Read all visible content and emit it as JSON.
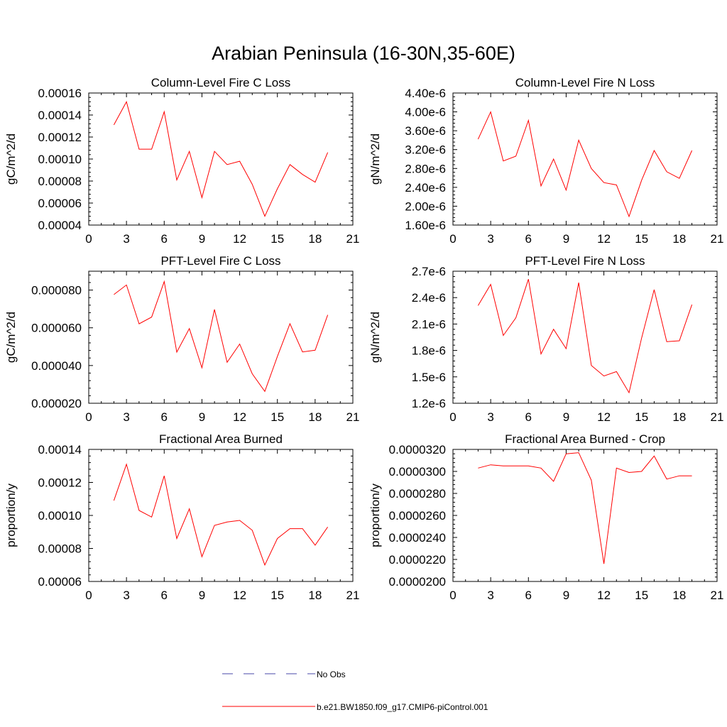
{
  "title": "Arabian Peninsula (16-30N,35-60E)",
  "legend": {
    "entries": [
      {
        "label": "No Obs",
        "style": "dashed",
        "color": "#4a4aa8"
      },
      {
        "label": "b.e21.BW1850.f09_g17.CMIP6-piControl.001",
        "style": "solid",
        "color": "#ff0000"
      }
    ]
  },
  "chart_data": [
    {
      "type": "line",
      "title": "Column-Level Fire C Loss",
      "ylabel": "gC/m^2/d",
      "xlabel": "",
      "xlim": [
        0,
        21
      ],
      "xticks": [
        "0",
        "3",
        "6",
        "9",
        "12",
        "15",
        "18",
        "21"
      ],
      "ylim": [
        4e-05,
        0.00016
      ],
      "yticks": [
        "0.00004",
        "0.00006",
        "0.00008",
        "0.00010",
        "0.00012",
        "0.00014",
        "0.00016"
      ],
      "series": [
        {
          "name": "b.e21.BW1850.f09_g17.CMIP6-piControl.001",
          "color": "#ff0000",
          "x": [
            2,
            3,
            4,
            5,
            6,
            7,
            8,
            9,
            10,
            11,
            12,
            13,
            14,
            15,
            16,
            17,
            18,
            19
          ],
          "y": [
            0.000131,
            0.000152,
            0.000109,
            0.000109,
            0.000143,
            8.1e-05,
            0.000107,
            6.5e-05,
            0.000107,
            9.5e-05,
            9.8e-05,
            7.7e-05,
            4.8e-05,
            7.3e-05,
            9.5e-05,
            8.6e-05,
            7.9e-05,
            0.000106
          ]
        }
      ]
    },
    {
      "type": "line",
      "title": "Column-Level Fire N Loss",
      "ylabel": "gN/m^2/d",
      "xlabel": "",
      "xlim": [
        0,
        21
      ],
      "xticks": [
        "0",
        "3",
        "6",
        "9",
        "12",
        "15",
        "18",
        "21"
      ],
      "ylim": [
        1.6e-06,
        4.4e-06
      ],
      "yticks": [
        "1.60e-6",
        "2.00e-6",
        "2.40e-6",
        "2.80e-6",
        "3.20e-6",
        "3.60e-6",
        "4.00e-6",
        "4.40e-6"
      ],
      "series": [
        {
          "name": "b.e21.BW1850.f09_g17.CMIP6-piControl.001",
          "color": "#ff0000",
          "x": [
            2,
            3,
            4,
            5,
            6,
            7,
            8,
            9,
            10,
            11,
            12,
            13,
            14,
            15,
            16,
            17,
            18,
            19
          ],
          "y": [
            3.42e-06,
            4e-06,
            2.96e-06,
            3.06e-06,
            3.82e-06,
            2.43e-06,
            3e-06,
            2.34e-06,
            3.4e-06,
            2.8e-06,
            2.5e-06,
            2.45e-06,
            1.78e-06,
            2.55e-06,
            3.18e-06,
            2.73e-06,
            2.59e-06,
            3.18e-06
          ]
        }
      ]
    },
    {
      "type": "line",
      "title": "PFT-Level Fire C Loss",
      "ylabel": "gC/m^2/d",
      "xlabel": "",
      "xlim": [
        0,
        21
      ],
      "xticks": [
        "0",
        "3",
        "6",
        "9",
        "12",
        "15",
        "18",
        "21"
      ],
      "ylim": [
        2e-05,
        9e-05
      ],
      "yticks": [
        "0.000020",
        "0.000040",
        "0.000060",
        "0.000080"
      ],
      "series": [
        {
          "name": "b.e21.BW1850.f09_g17.CMIP6-piControl.001",
          "color": "#ff0000",
          "x": [
            2,
            3,
            4,
            5,
            6,
            7,
            8,
            9,
            10,
            11,
            12,
            13,
            14,
            15,
            16,
            17,
            18,
            19
          ],
          "y": [
            7.76e-05,
            8.27e-05,
            6.21e-05,
            6.57e-05,
            8.45e-05,
            4.71e-05,
            5.96e-05,
            3.88e-05,
            6.97e-05,
            4.17e-05,
            5.14e-05,
            3.56e-05,
            2.63e-05,
            4.48e-05,
            6.22e-05,
            4.72e-05,
            4.81e-05,
            6.68e-05
          ]
        }
      ]
    },
    {
      "type": "line",
      "title": "PFT-Level Fire N Loss",
      "ylabel": "gN/m^2/d",
      "xlabel": "",
      "xlim": [
        0,
        21
      ],
      "xticks": [
        "0",
        "3",
        "6",
        "9",
        "12",
        "15",
        "18",
        "21"
      ],
      "ylim": [
        1.2e-06,
        2.7e-06
      ],
      "yticks": [
        "1.2e-6",
        "1.5e-6",
        "1.8e-6",
        "2.1e-6",
        "2.4e-6",
        "2.7e-6"
      ],
      "series": [
        {
          "name": "b.e21.BW1850.f09_g17.CMIP6-piControl.001",
          "color": "#ff0000",
          "x": [
            2,
            3,
            4,
            5,
            6,
            7,
            8,
            9,
            10,
            11,
            12,
            13,
            14,
            15,
            16,
            17,
            18,
            19
          ],
          "y": [
            2.31e-06,
            2.55e-06,
            1.97e-06,
            2.17e-06,
            2.61e-06,
            1.76e-06,
            2.04e-06,
            1.82e-06,
            2.57e-06,
            1.63e-06,
            1.51e-06,
            1.56e-06,
            1.32e-06,
            1.94e-06,
            2.49e-06,
            1.9e-06,
            1.91e-06,
            2.32e-06
          ]
        }
      ]
    },
    {
      "type": "line",
      "title": "Fractional Area Burned",
      "ylabel": "proportion/y",
      "xlabel": "",
      "xlim": [
        0,
        21
      ],
      "xticks": [
        "0",
        "3",
        "6",
        "9",
        "12",
        "15",
        "18",
        "21"
      ],
      "ylim": [
        6e-05,
        0.00014
      ],
      "yticks": [
        "0.00006",
        "0.00008",
        "0.00010",
        "0.00012",
        "0.00014"
      ],
      "series": [
        {
          "name": "b.e21.BW1850.f09_g17.CMIP6-piControl.001",
          "color": "#ff0000",
          "x": [
            2,
            3,
            4,
            5,
            6,
            7,
            8,
            9,
            10,
            11,
            12,
            13,
            14,
            15,
            16,
            17,
            18,
            19
          ],
          "y": [
            0.000109,
            0.000131,
            0.000103,
            9.9e-05,
            0.000124,
            8.6e-05,
            0.000104,
            7.5e-05,
            9.4e-05,
            9.6e-05,
            9.7e-05,
            9.1e-05,
            7e-05,
            8.6e-05,
            9.2e-05,
            9.2e-05,
            8.2e-05,
            9.3e-05
          ]
        }
      ]
    },
    {
      "type": "line",
      "title": "Fractional Area Burned - Crop",
      "ylabel": "proportion/y",
      "xlabel": "",
      "xlim": [
        0,
        21
      ],
      "xticks": [
        "0",
        "3",
        "6",
        "9",
        "12",
        "15",
        "18",
        "21"
      ],
      "ylim": [
        2e-05,
        3.2e-05
      ],
      "yticks": [
        "0.0000200",
        "0.0000220",
        "0.0000240",
        "0.0000260",
        "0.0000280",
        "0.0000300",
        "0.0000320"
      ],
      "series": [
        {
          "name": "b.e21.BW1850.f09_g17.CMIP6-piControl.001",
          "color": "#ff0000",
          "x": [
            2,
            3,
            4,
            5,
            6,
            7,
            8,
            9,
            10,
            11,
            12,
            13,
            14,
            15,
            16,
            17,
            18,
            19
          ],
          "y": [
            3.03e-05,
            3.06e-05,
            3.05e-05,
            3.05e-05,
            3.05e-05,
            3.03e-05,
            2.91e-05,
            3.16e-05,
            3.17e-05,
            2.92e-05,
            2.16e-05,
            3.03e-05,
            2.99e-05,
            3e-05,
            3.14e-05,
            2.93e-05,
            2.96e-05,
            2.96e-05
          ]
        }
      ]
    }
  ]
}
